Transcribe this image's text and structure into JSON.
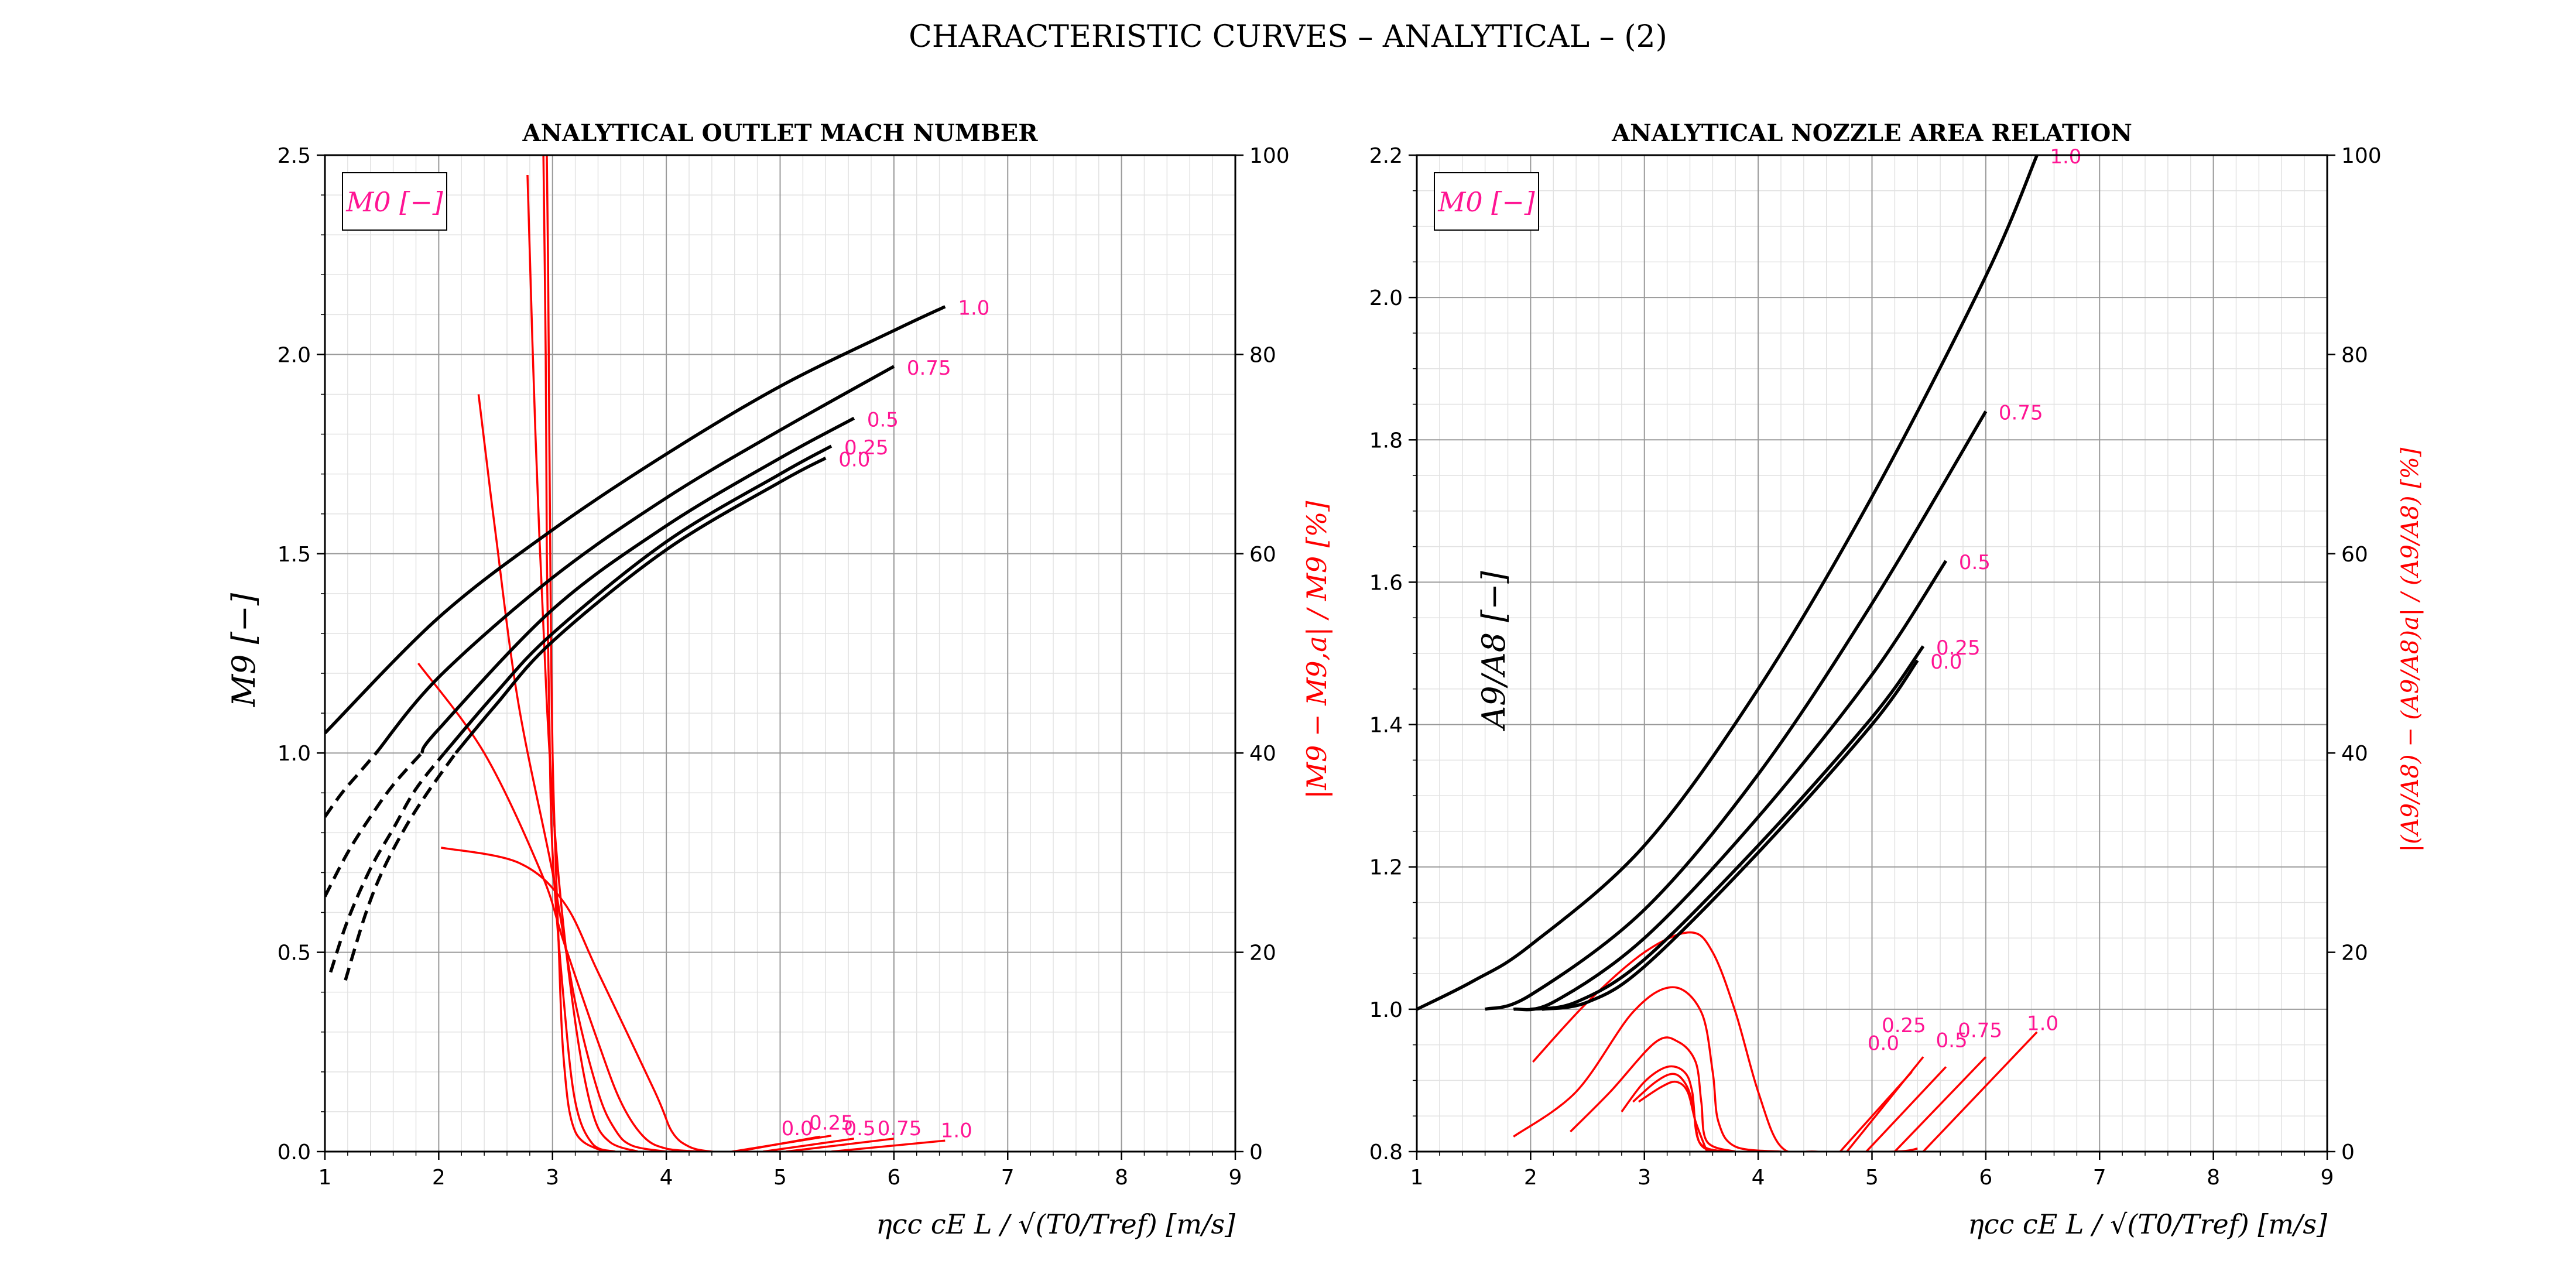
{
  "title": "CHARACTERISTIC CURVES  – ANALYTICAL – (2)",
  "colors": {
    "main": "#000000",
    "dev": "#ff0000",
    "label": "#ff1493"
  },
  "chart_data": [
    {
      "type": "line",
      "title": "ANALYTICAL OUTLET MACH NUMBER",
      "legend_box": "M0 [−]",
      "xlabel": "ηcc cE L / √(T0/Tref)  [m/s]",
      "ylabel": "M9 [−]",
      "y2label": "|M9 − M9,a| / M9  [%]",
      "xlim": [
        1,
        9
      ],
      "ylim": [
        0,
        2.5
      ],
      "y2lim": [
        0,
        100
      ],
      "xticks": [
        "1",
        "2",
        "3",
        "4",
        "5",
        "6",
        "7",
        "8",
        "9"
      ],
      "yticks": [
        "0.0",
        "0.5",
        "1.0",
        "1.5",
        "2.0",
        "2.5"
      ],
      "y2ticks": [
        "0",
        "20",
        "40",
        "60",
        "80",
        "100"
      ],
      "series": [
        {
          "name": "1.0",
          "solid_x": [
            1.0,
            2.0,
            3.0,
            4.0,
            5.0,
            6.0,
            6.45
          ],
          "solid_y": [
            1.05,
            1.34,
            1.56,
            1.75,
            1.92,
            2.06,
            2.12
          ],
          "dash_x": [],
          "dash_y": []
        },
        {
          "name": "0.75",
          "solid_x": [
            1.45,
            2.0,
            3.0,
            4.0,
            5.0,
            6.0
          ],
          "solid_y": [
            1.0,
            1.19,
            1.44,
            1.64,
            1.81,
            1.97
          ],
          "dash_x": [
            1.0,
            1.15,
            1.3,
            1.45
          ],
          "dash_y": [
            0.84,
            0.9,
            0.95,
            1.0
          ]
        },
        {
          "name": "0.5",
          "solid_x": [
            1.85,
            2.0,
            3.0,
            4.0,
            5.0,
            5.65
          ],
          "solid_y": [
            1.0,
            1.06,
            1.36,
            1.57,
            1.74,
            1.84
          ],
          "dash_x": [
            1.0,
            1.2,
            1.4,
            1.6,
            1.85
          ],
          "dash_y": [
            0.64,
            0.75,
            0.84,
            0.92,
            1.0
          ]
        },
        {
          "name": "0.25",
          "solid_x": [
            2.05,
            2.5,
            3.0,
            4.0,
            5.0,
            5.45
          ],
          "solid_y": [
            1.0,
            1.15,
            1.3,
            1.53,
            1.7,
            1.77
          ],
          "dash_x": [
            1.05,
            1.2,
            1.4,
            1.6,
            1.8,
            2.05
          ],
          "dash_y": [
            0.45,
            0.58,
            0.71,
            0.81,
            0.91,
            1.0
          ]
        },
        {
          "name": "0.0",
          "solid_x": [
            2.15,
            2.5,
            3.0,
            4.0,
            5.0,
            5.4
          ],
          "solid_y": [
            1.0,
            1.12,
            1.28,
            1.51,
            1.68,
            1.74
          ],
          "dash_x": [
            1.18,
            1.35,
            1.5,
            1.7,
            1.9,
            2.15
          ],
          "dash_y": [
            0.43,
            0.59,
            0.7,
            0.81,
            0.9,
            1.0
          ]
        }
      ],
      "deviation": [
        {
          "x": [
            2.02,
            2.7,
            3.1,
            3.4,
            3.9,
            4.05,
            4.2,
            4.4,
            4.6
          ],
          "y": [
            30.5,
            29,
            25,
            18,
            6,
            2,
            0.5,
            0,
            0
          ]
        },
        {
          "x": [
            1.82,
            2.4,
            2.9,
            3.1,
            3.4,
            3.6,
            3.8,
            4.0,
            4.3
          ],
          "y": [
            49,
            40,
            28,
            21,
            11,
            5,
            1.5,
            0.3,
            0
          ]
        },
        {
          "x": [
            2.35,
            2.5,
            2.7,
            3.0,
            3.2,
            3.4,
            3.55,
            3.7,
            4.0
          ],
          "y": [
            76,
            62,
            45,
            28,
            15,
            6,
            2.2,
            0.6,
            0
          ]
        },
        {
          "x": [
            2.78,
            2.85,
            2.95,
            3.05,
            3.2,
            3.35,
            3.5,
            3.75
          ],
          "y": [
            98,
            72,
            45,
            28,
            13,
            4,
            1,
            0
          ]
        },
        {
          "x": [
            2.92,
            2.94,
            2.95,
            2.97,
            3.0,
            3.1,
            3.2,
            3.35,
            3.55
          ],
          "y": [
            100,
            80,
            60,
            45,
            30,
            15,
            5,
            0.8,
            0
          ]
        },
        {
          "x": [
            2.95,
            2.96,
            2.97,
            2.98,
            3.0,
            3.05,
            3.1,
            3.2,
            3.45
          ],
          "y": [
            100,
            90,
            75,
            60,
            40,
            22,
            9,
            2,
            0
          ]
        }
      ],
      "deviation_lines": [
        {
          "name": "0.0",
          "x": [
            4.62,
            5.35
          ],
          "y": [
            0,
            1.5
          ]
        },
        {
          "name": "0.25",
          "x": [
            4.58,
            5.45
          ],
          "y": [
            0,
            1.6
          ]
        },
        {
          "name": "0.5",
          "x": [
            4.85,
            5.65
          ],
          "y": [
            0,
            1.3
          ]
        },
        {
          "name": "0.75",
          "x": [
            5.05,
            6.0
          ],
          "y": [
            0,
            1.3
          ]
        },
        {
          "name": "1.0",
          "x": [
            5.45,
            6.45
          ],
          "y": [
            0,
            1.1
          ]
        }
      ],
      "dev_labels": [
        {
          "text": "0.0",
          "x": 5.15,
          "y": 1.65,
          "color_key": "label"
        },
        {
          "text": "0.25",
          "x": 5.45,
          "y": 2.2,
          "color_key": "label"
        },
        {
          "text": "0.5",
          "x": 5.7,
          "y": 1.65,
          "color_key": "label"
        },
        {
          "text": "0.75",
          "x": 6.05,
          "y": 1.65,
          "color_key": "label"
        },
        {
          "text": "1.0",
          "x": 6.55,
          "y": 1.45,
          "color_key": "label"
        }
      ]
    },
    {
      "type": "line",
      "title": "ANALYTICAL NOZZLE AREA RELATION",
      "legend_box": "M0 [−]",
      "xlabel": "ηcc cE L / √(T0/Tref)  [m/s]",
      "ylabel": "A9/A8 [−]",
      "y2label": "|(A9/A8) − (A9/A8)a| / (A9/A8)  [%]",
      "xlim": [
        1,
        9
      ],
      "ylim": [
        0.8,
        2.2
      ],
      "y2lim": [
        0,
        100
      ],
      "xticks": [
        "1",
        "2",
        "3",
        "4",
        "5",
        "6",
        "7",
        "8",
        "9"
      ],
      "yticks": [
        "0.8",
        "1.0",
        "1.2",
        "1.4",
        "1.6",
        "1.8",
        "2.0",
        "2.2"
      ],
      "y2ticks": [
        "0",
        "20",
        "40",
        "60",
        "80",
        "100"
      ],
      "series": [
        {
          "name": "1.0",
          "solid_x": [
            1.0,
            1.5,
            2.0,
            3.0,
            4.0,
            5.0,
            6.0,
            6.45
          ],
          "solid_y": [
            1.0,
            1.04,
            1.09,
            1.23,
            1.45,
            1.72,
            2.03,
            2.2
          ],
          "dash_x": [],
          "dash_y": []
        },
        {
          "name": "0.75",
          "solid_x": [
            1.6,
            2.0,
            3.0,
            4.0,
            5.0,
            6.0
          ],
          "solid_y": [
            1.0,
            1.02,
            1.14,
            1.33,
            1.57,
            1.84
          ],
          "dash_x": [],
          "dash_y": []
        },
        {
          "name": "0.5",
          "solid_x": [
            1.85,
            2.2,
            3.0,
            4.0,
            5.0,
            5.65
          ],
          "solid_y": [
            1.0,
            1.01,
            1.1,
            1.27,
            1.47,
            1.63
          ],
          "dash_x": [],
          "dash_y": []
        },
        {
          "name": "0.25",
          "solid_x": [
            2.0,
            2.4,
            3.0,
            4.0,
            5.0,
            5.45
          ],
          "solid_y": [
            1.0,
            1.01,
            1.07,
            1.23,
            1.41,
            1.51
          ],
          "dash_x": [],
          "dash_y": []
        },
        {
          "name": "0.0",
          "solid_x": [
            2.1,
            2.5,
            3.0,
            4.0,
            5.0,
            5.4
          ],
          "solid_y": [
            1.0,
            1.01,
            1.06,
            1.22,
            1.4,
            1.49
          ],
          "dash_x": [],
          "dash_y": []
        }
      ],
      "deviation": [
        {
          "x": [
            2.02,
            2.5,
            3.0,
            3.4,
            3.6,
            3.8,
            4.0,
            4.2,
            4.5,
            5.2,
            5.4
          ],
          "y": [
            9,
            15,
            20,
            22,
            20,
            14,
            6,
            0.5,
            0,
            0,
            0.3
          ]
        },
        {
          "x": [
            1.85,
            2.4,
            2.9,
            3.25,
            3.5,
            3.6,
            3.65,
            3.8,
            4.2
          ],
          "y": [
            1.5,
            6,
            14,
            16.5,
            14,
            8,
            3,
            0.5,
            0
          ]
        },
        {
          "x": [
            2.35,
            2.7,
            3.1,
            3.3,
            3.45,
            3.5,
            3.55,
            3.8
          ],
          "y": [
            2,
            6,
            11,
            11,
            9,
            5,
            1,
            0
          ]
        },
        {
          "x": [
            2.8,
            3.0,
            3.2,
            3.35,
            3.42,
            3.48,
            3.7
          ],
          "y": [
            4,
            7,
            8.5,
            8,
            6,
            1,
            0
          ]
        },
        {
          "x": [
            2.9,
            3.1,
            3.25,
            3.35,
            3.42,
            3.48,
            3.6
          ],
          "y": [
            5,
            7,
            7.8,
            7,
            5,
            1,
            0
          ]
        },
        {
          "x": [
            2.95,
            3.15,
            3.28,
            3.38,
            3.45,
            3.55
          ],
          "y": [
            5,
            6.5,
            7,
            6,
            3,
            0
          ]
        }
      ],
      "deviation_lines": [
        {
          "name": "0.0",
          "x": [
            4.72,
            5.35
          ],
          "y": [
            0,
            8
          ]
        },
        {
          "name": "0.25",
          "x": [
            4.78,
            5.45
          ],
          "y": [
            0,
            9.5
          ]
        },
        {
          "name": "0.5",
          "x": [
            4.95,
            5.65
          ],
          "y": [
            0,
            8.5
          ]
        },
        {
          "name": "0.75",
          "x": [
            5.2,
            6.0
          ],
          "y": [
            0,
            9.5
          ]
        },
        {
          "name": "1.0",
          "x": [
            5.45,
            6.45
          ],
          "y": [
            0,
            12
          ]
        }
      ],
      "dev_labels": [
        {
          "text": "0.0",
          "x": 5.1,
          "y": 10.2,
          "color_key": "label"
        },
        {
          "text": "0.25",
          "x": 5.28,
          "y": 12.0,
          "color_key": "label"
        },
        {
          "text": "0.5",
          "x": 5.7,
          "y": 10.5,
          "color_key": "label"
        },
        {
          "text": "0.75",
          "x": 5.95,
          "y": 11.5,
          "color_key": "label"
        },
        {
          "text": "1.0",
          "x": 6.5,
          "y": 12.2,
          "color_key": "label"
        }
      ]
    }
  ]
}
